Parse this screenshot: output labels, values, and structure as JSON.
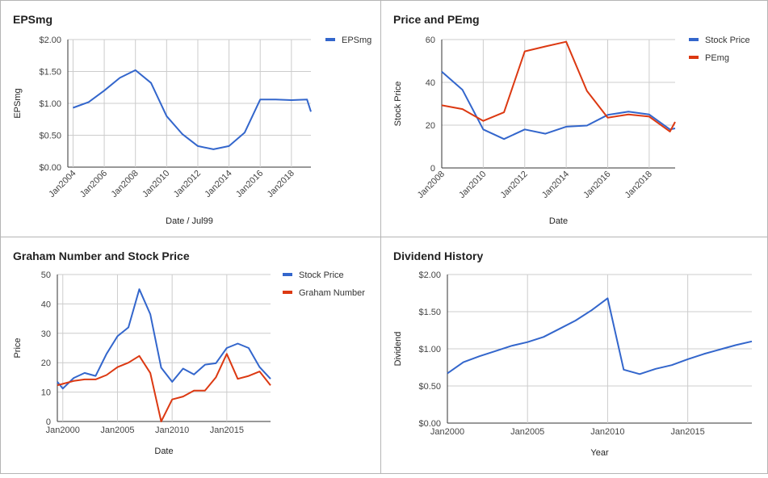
{
  "chart_data": [
    {
      "type": "line",
      "title": "EPSmg",
      "xlabel": "Date / Jul99",
      "ylabel": "EPSmg",
      "x": [
        "2004-01",
        "2005-01",
        "2006-01",
        "2007-01",
        "2008-01",
        "2009-01",
        "2010-01",
        "2011-01",
        "2012-01",
        "2013-01",
        "2014-01",
        "2015-01",
        "2016-01",
        "2017-01",
        "2018-01",
        "2019-01",
        "2019-04"
      ],
      "series": [
        {
          "name": "EPSmg",
          "color": "#3366cc",
          "values": [
            0.93,
            1.02,
            1.2,
            1.4,
            1.52,
            1.32,
            0.8,
            0.52,
            0.33,
            0.28,
            0.33,
            0.54,
            1.06,
            1.06,
            1.05,
            1.06,
            0.87
          ]
        }
      ],
      "ylim": [
        0,
        2
      ],
      "yticks": [
        0,
        0.5,
        1,
        1.5,
        2
      ],
      "ytick_labels": [
        "$0.00",
        "$0.50",
        "$1.00",
        "$1.50",
        "$2.00"
      ],
      "xticks": [
        "2004-01",
        "2006-01",
        "2008-01",
        "2010-01",
        "2012-01",
        "2014-01",
        "2016-01",
        "2018-01"
      ],
      "xtick_labels": [
        "Jan2004",
        "Jan2006",
        "Jan2008",
        "Jan2010",
        "Jan2012",
        "Jan2014",
        "Jan2016",
        "Jan2018"
      ],
      "legend": "right",
      "grid": true
    },
    {
      "type": "line",
      "title": "Price and PEmg",
      "xlabel": "Date",
      "ylabel": "Stock Price",
      "x": [
        "2008-01",
        "2009-01",
        "2010-01",
        "2011-01",
        "2012-01",
        "2013-01",
        "2014-01",
        "2015-01",
        "2016-01",
        "2017-01",
        "2018-01",
        "2019-01",
        "2019-04"
      ],
      "series": [
        {
          "name": "Stock Price",
          "color": "#3366cc",
          "values": [
            45,
            36.5,
            18,
            13.5,
            18,
            16,
            19.3,
            19.8,
            24.8,
            26.3,
            25,
            18,
            18.5
          ]
        },
        {
          "name": "PEmg",
          "color": "#dc3912",
          "values": [
            29.3,
            27.5,
            22,
            26,
            54.5,
            56.8,
            59,
            36,
            23.5,
            25,
            24,
            17,
            21.5
          ]
        }
      ],
      "ylim": [
        0,
        60
      ],
      "yticks": [
        0,
        20,
        40,
        60
      ],
      "ytick_labels": [
        "0",
        "20",
        "40",
        "60"
      ],
      "xticks": [
        "2008-01",
        "2010-01",
        "2012-01",
        "2014-01",
        "2016-01",
        "2018-01"
      ],
      "xtick_labels": [
        "Jan2008",
        "Jan2010",
        "Jan2012",
        "Jan2014",
        "Jan2016",
        "Jan2018"
      ],
      "legend": "right",
      "grid": true
    },
    {
      "type": "line",
      "title": "Graham Number and Stock Price",
      "xlabel": "Date",
      "ylabel": "Price",
      "x": [
        "1999-07",
        "2000-01",
        "2001-01",
        "2002-01",
        "2003-01",
        "2004-01",
        "2005-01",
        "2006-01",
        "2007-01",
        "2008-01",
        "2009-01",
        "2010-01",
        "2011-01",
        "2012-01",
        "2013-01",
        "2014-01",
        "2015-01",
        "2016-01",
        "2017-01",
        "2018-01",
        "2019-01"
      ],
      "series": [
        {
          "name": "Stock Price",
          "color": "#3366cc",
          "values": [
            13.5,
            11.2,
            14.8,
            16.5,
            15.5,
            23,
            29,
            32,
            45,
            36.5,
            18.3,
            13.5,
            18,
            16,
            19.3,
            19.8,
            25,
            26.5,
            25,
            18.5,
            14.5
          ]
        },
        {
          "name": "Graham Number",
          "color": "#dc3912",
          "values": [
            12.3,
            12.8,
            13.8,
            14.3,
            14.3,
            15.8,
            18.5,
            20,
            22.3,
            16.5,
            0,
            7.5,
            8.5,
            10.5,
            10.5,
            15,
            23,
            14.5,
            15.5,
            17,
            12.3
          ]
        }
      ],
      "ylim": [
        0,
        50
      ],
      "yticks": [
        0,
        10,
        20,
        30,
        40,
        50
      ],
      "ytick_labels": [
        "0",
        "10",
        "20",
        "30",
        "40",
        "50"
      ],
      "xticks": [
        "2000-01",
        "2005-01",
        "2010-01",
        "2015-01"
      ],
      "xtick_labels": [
        "Jan2000",
        "Jan2005",
        "Jan2010",
        "Jan2015"
      ],
      "legend": "right",
      "grid": true
    },
    {
      "type": "line",
      "title": "Dividend History",
      "xlabel": "Year",
      "ylabel": "Dividend",
      "x": [
        "2000-01",
        "2001-01",
        "2002-01",
        "2003-01",
        "2004-01",
        "2005-01",
        "2006-01",
        "2007-01",
        "2008-01",
        "2009-01",
        "2010-01",
        "2011-01",
        "2012-01",
        "2013-01",
        "2014-01",
        "2015-01",
        "2016-01",
        "2017-01",
        "2018-01",
        "2019-01"
      ],
      "series": [
        {
          "name": "",
          "color": "#3366cc",
          "values": [
            0.67,
            0.82,
            0.9,
            0.97,
            1.04,
            1.09,
            1.16,
            1.27,
            1.38,
            1.52,
            1.68,
            0.72,
            0.66,
            0.73,
            0.78,
            0.86,
            0.93,
            0.99,
            1.05,
            1.1
          ]
        }
      ],
      "ylim": [
        0,
        2
      ],
      "yticks": [
        0,
        0.5,
        1,
        1.5,
        2
      ],
      "ytick_labels": [
        "$0.00",
        "$0.50",
        "$1.00",
        "$1.50",
        "$2.00"
      ],
      "xticks": [
        "2000-01",
        "2005-01",
        "2010-01",
        "2015-01"
      ],
      "xtick_labels": [
        "Jan2000",
        "Jan2005",
        "Jan2010",
        "Jan2015"
      ],
      "legend": "none",
      "grid": true
    }
  ]
}
